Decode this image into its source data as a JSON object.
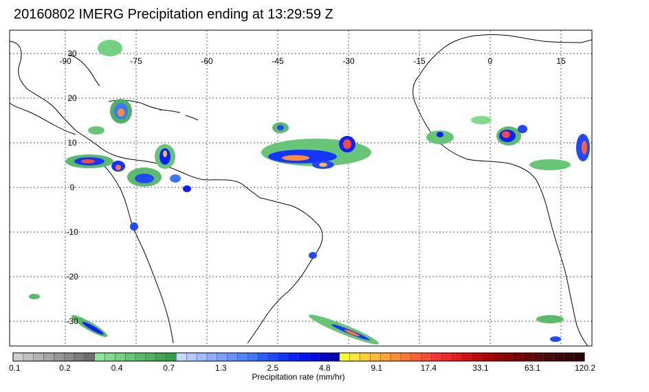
{
  "title": "20160802 IMERG Precipitation ending at 13:29:59 Z",
  "map": {
    "lon_labels": [
      "-90",
      "-75",
      "-60",
      "-45",
      "-30",
      "-15",
      "0",
      "15"
    ],
    "lat_labels": [
      "30",
      "20",
      "10",
      "0",
      "-10",
      "-20",
      "-30"
    ],
    "lon_range": [
      -95,
      20
    ],
    "lat_range": [
      -36,
      34
    ],
    "gridlines": true
  },
  "colorbar": {
    "tick_labels": [
      "0.1",
      "0.2",
      "0.4",
      "0.7",
      "1.3",
      "2.5",
      "4.8",
      "9.1",
      "17.4",
      "33.1",
      "63.1",
      "120.2"
    ],
    "label": "Precipitation rate (mm/hr)",
    "groups": [
      [
        "#cfcfcf",
        "#c1c1c1",
        "#b3b3b3",
        "#a5a5a5",
        "#979797",
        "#898989",
        "#7b7b7b",
        "#6d6d6d"
      ],
      [
        "#8fe39a",
        "#82da8e",
        "#74d082",
        "#67c676",
        "#5abc6b",
        "#4db160",
        "#40a655",
        "#34a04a"
      ],
      [
        "#c9d8ff",
        "#b5caff",
        "#a1bcff",
        "#8daeff",
        "#79a0ff",
        "#6592ff",
        "#5184ff",
        "#3d76ff"
      ],
      [
        "#2a5cff",
        "#1f48ff",
        "#1434ff",
        "#0a20ff",
        "#0010ff",
        "#0008e6",
        "#0000cc",
        "#0000b3"
      ],
      [
        "#ffff33",
        "#ffe833",
        "#ffd133",
        "#ffbb33",
        "#ffa433",
        "#ff8e33",
        "#ff7733",
        "#ff6133"
      ],
      [
        "#ff4a33",
        "#ff3333",
        "#f52626",
        "#e61a1a",
        "#d40f0f",
        "#c20505",
        "#b00000",
        "#9e0000"
      ],
      [
        "#8a0000",
        "#7a0000",
        "#6a0505",
        "#5a0a0a",
        "#4a0a0a",
        "#3f0808",
        "#350505",
        "#2b0303"
      ]
    ]
  }
}
